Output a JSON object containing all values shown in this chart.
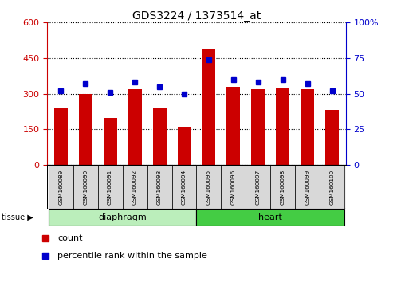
{
  "title": "GDS3224 / 1373514_at",
  "samples": [
    "GSM160089",
    "GSM160090",
    "GSM160091",
    "GSM160092",
    "GSM160093",
    "GSM160094",
    "GSM160095",
    "GSM160096",
    "GSM160097",
    "GSM160098",
    "GSM160099",
    "GSM160100"
  ],
  "counts": [
    240,
    300,
    200,
    320,
    240,
    158,
    490,
    330,
    320,
    322,
    318,
    232
  ],
  "percentiles": [
    52,
    57,
    51,
    58,
    55,
    50,
    74,
    60,
    58,
    60,
    57,
    52
  ],
  "bar_color": "#cc0000",
  "dot_color": "#0000cc",
  "left_ylim": [
    0,
    600
  ],
  "right_ylim": [
    0,
    100
  ],
  "left_yticks": [
    0,
    150,
    300,
    450,
    600
  ],
  "right_yticks": [
    0,
    25,
    50,
    75,
    100
  ],
  "groups": [
    {
      "label": "diaphragm",
      "start": 0,
      "end": 6
    },
    {
      "label": "heart",
      "start": 6,
      "end": 12
    }
  ],
  "group_colors": {
    "diaphragm": "#bbeebb",
    "heart": "#44cc44"
  },
  "tissue_label": "tissue",
  "legend_count": "count",
  "legend_pct": "percentile rank within the sample",
  "left_axis_color": "#cc0000",
  "right_axis_color": "#0000cc",
  "title_fontsize": 10,
  "bar_width": 0.55
}
